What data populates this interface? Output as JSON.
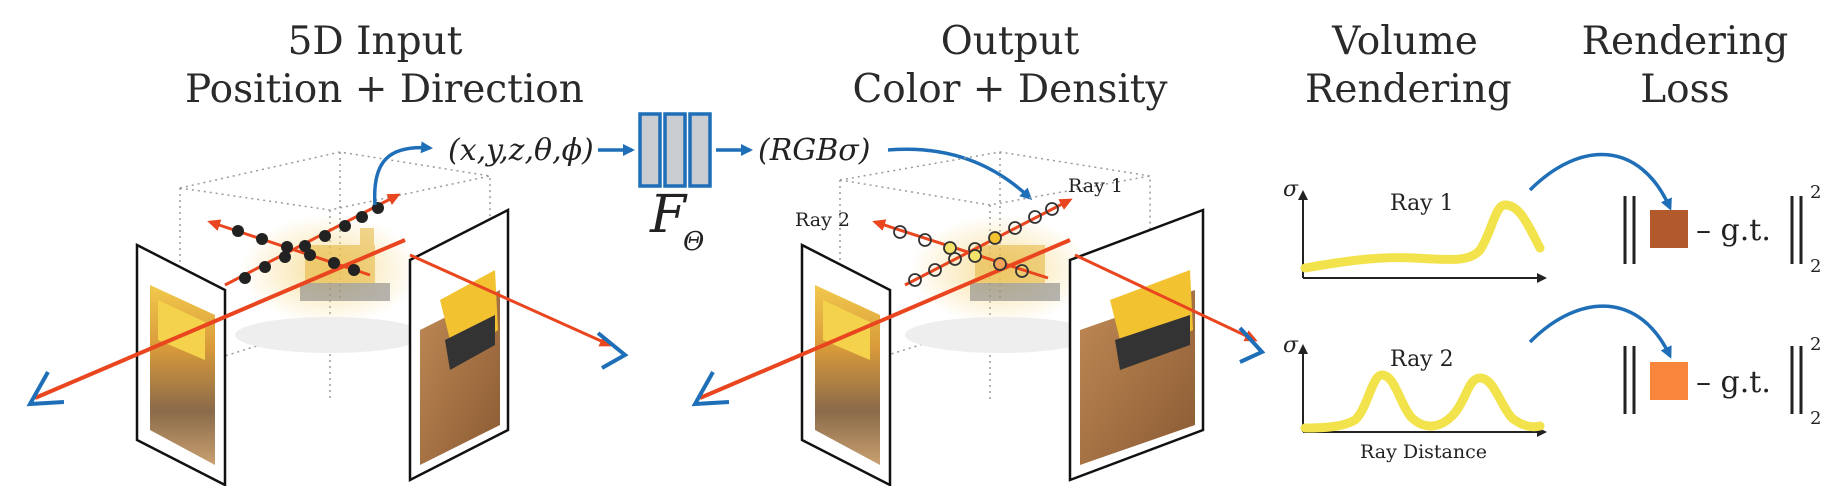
{
  "titles": {
    "input": {
      "line1": "5D Input",
      "line2": "Position + Direction"
    },
    "output": {
      "line1": "Output",
      "line2": "Color + Density"
    },
    "volume": {
      "line1": "Volume",
      "line2": "Rendering"
    },
    "loss": {
      "line1": "Rendering",
      "line2": "Loss"
    }
  },
  "network": {
    "input_tuple": "(x,y,z,θ,ϕ)",
    "output_tuple": "(RGBσ)",
    "label_main": "F",
    "label_sub": "Θ"
  },
  "scene_labels": {
    "ray1": "Ray 1",
    "ray2": "Ray 2"
  },
  "plots": {
    "sigma_label": "σ",
    "ray1_label": "Ray 1",
    "ray2_label": "Ray 2",
    "x_axis_label": "Ray Distance"
  },
  "loss": {
    "gt_text": "– g.t.",
    "exponent": "2",
    "subscript": "2",
    "ray1_color": "#b35a2c",
    "ray2_color": "#f9853c"
  },
  "colors": {
    "ray": "#e9451f",
    "arrow_blue": "#1f6fb8",
    "density_curve": "#f2e34d",
    "network_fill": "#c9ccd1",
    "network_stroke": "#1f6fb8"
  }
}
